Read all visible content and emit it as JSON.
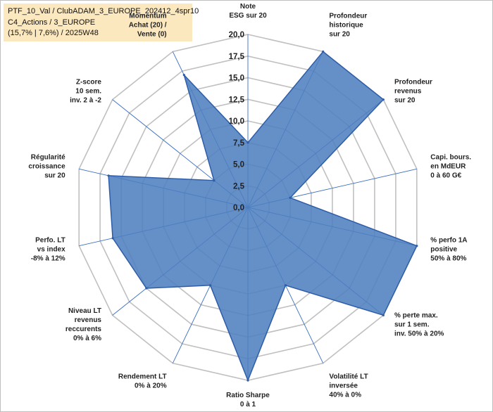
{
  "info": {
    "line1": "PTF_10_Val / ClubADAM_3_EUROPE_202412_4spr10",
    "line2": "C4_Actions / 3_EUROPE",
    "line3": "(15,7% | 7,6%) / 2025W48"
  },
  "colors": {
    "fill": "#4f7fbf",
    "stroke": "#2e5da8",
    "grid": "#c0c0c0",
    "spoke": "#3a6fc4"
  },
  "chart_data": {
    "type": "radar",
    "ylim": [
      0,
      20
    ],
    "ticks": [
      "0,0",
      "2,5",
      "5,0",
      "7,5",
      "10,0",
      "12,5",
      "15,0",
      "17,5",
      "20,0"
    ],
    "grid": true,
    "categories": [
      [
        "Note",
        "ESG sur 20"
      ],
      [
        "Profondeur",
        "historique",
        "sur 20"
      ],
      [
        "Profondeur",
        "revenus",
        "sur 20"
      ],
      [
        "Capi. bours.",
        "en MdEUR",
        "0 à 60 G€"
      ],
      [
        "% perfo 1A",
        "positive",
        "50% à 80%"
      ],
      [
        "% perte max.",
        "sur 1 sem.",
        "inv. 50% à 20%"
      ],
      [
        "Volatilité LT",
        "inversée",
        "40% à 0%"
      ],
      [
        "Ratio Sharpe",
        "0 à 1"
      ],
      [
        "Rendement LT",
        "0% à 20%"
      ],
      [
        "Niveau LT",
        "revenus",
        "reccurents",
        "0% à 6%"
      ],
      [
        "Perfo. LT",
        "vs index",
        "-8% à 12%"
      ],
      [
        "Régularité",
        "croissance",
        "sur 20"
      ],
      [
        "Z-score",
        "10 sem.",
        "inv. 2 à -2"
      ],
      [
        "Momentum",
        "Achat (20) /",
        "Vente (0)"
      ]
    ],
    "series": [
      {
        "values": [
          7.5,
          20,
          20,
          5,
          20,
          20,
          10,
          20,
          10,
          15,
          16,
          16.5,
          5,
          17
        ]
      }
    ]
  }
}
